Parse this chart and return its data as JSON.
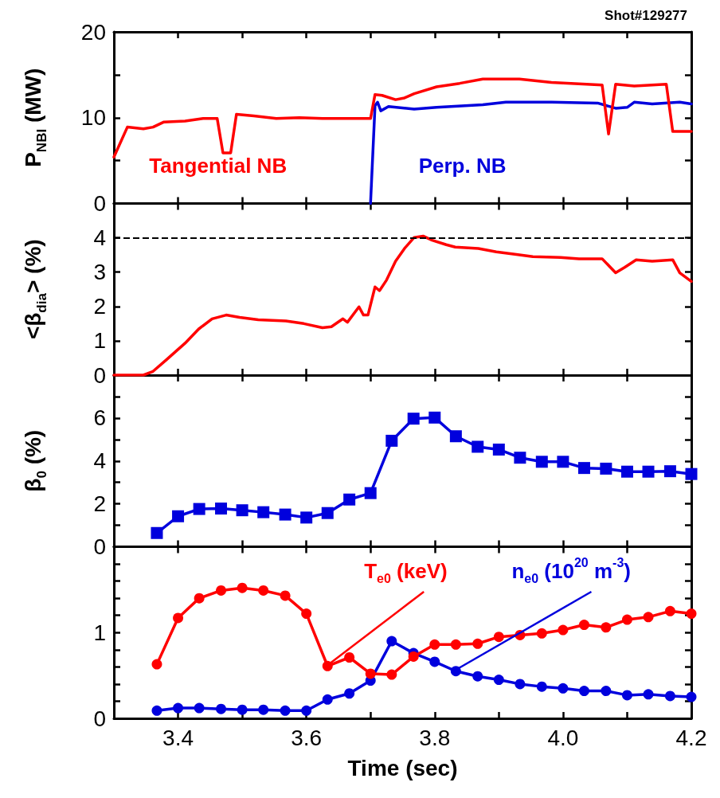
{
  "chart_data": [
    {
      "type": "line",
      "title": "Shot#129277",
      "ylabel": "P$_{NBI}$ (MW)",
      "xlim": [
        3.3,
        4.2
      ],
      "ylim": [
        0,
        20
      ],
      "tick_labels": "y",
      "legend": false,
      "xticks": [
        {
          "value": 3.4,
          "label": null
        },
        {
          "value": 3.5,
          "label": null
        },
        {
          "value": 3.6,
          "label": null
        },
        {
          "value": 3.7,
          "label": null
        },
        {
          "value": 3.8,
          "label": null
        },
        {
          "value": 3.9,
          "label": null
        },
        {
          "value": 4.0,
          "label": null
        },
        {
          "value": 4.1,
          "label": null
        },
        {
          "value": 4.2,
          "label": null
        }
      ],
      "yticks": [
        0,
        {
          "value": 5,
          "label": null
        },
        10,
        {
          "value": 15,
          "label": null
        },
        20
      ],
      "series": [
        {
          "name": "Tangential NB",
          "color": "#ff0000",
          "x": [
            3.3,
            3.321,
            3.346,
            3.361,
            3.378,
            3.411,
            3.439,
            3.461,
            3.47,
            3.482,
            3.491,
            3.518,
            3.553,
            3.589,
            3.625,
            3.696,
            3.7,
            3.707,
            3.718,
            3.739,
            3.753,
            3.768,
            3.803,
            3.839,
            3.875,
            3.932,
            3.982,
            4.061,
            4.071,
            4.082,
            4.111,
            4.161,
            4.171,
            4.2
          ],
          "values": [
            5.4,
            8.9,
            8.7,
            8.9,
            9.5,
            9.6,
            9.9,
            9.9,
            5.9,
            5.9,
            10.4,
            10.2,
            9.9,
            10.0,
            9.9,
            9.9,
            9.9,
            12.7,
            12.6,
            12.1,
            12.3,
            12.8,
            13.6,
            14.0,
            14.5,
            14.5,
            14.1,
            13.8,
            8.1,
            13.9,
            13.7,
            13.9,
            8.4,
            8.4
          ]
        },
        {
          "name": "Perp. NB",
          "color": "#0000dd",
          "x": [
            3.7,
            3.707,
            3.711,
            3.716,
            3.728,
            3.768,
            3.803,
            3.875,
            3.911,
            3.982,
            4.054,
            4.082,
            4.1,
            4.111,
            4.139,
            4.182,
            4.2
          ],
          "values": [
            0,
            11.4,
            11.8,
            10.8,
            11.3,
            11.0,
            11.2,
            11.5,
            11.8,
            11.8,
            11.7,
            11.1,
            11.2,
            11.8,
            11.6,
            11.8,
            11.6
          ]
        }
      ]
    },
    {
      "type": "line",
      "ylabel": "<β$_{dia}$> (%)",
      "xlim": [
        3.3,
        4.2
      ],
      "ylim": [
        0,
        5
      ],
      "tick_labels": "y",
      "xticks": [
        {
          "value": 3.4,
          "label": null
        },
        {
          "value": 3.5,
          "label": null
        },
        {
          "value": 3.6,
          "label": null
        },
        {
          "value": 3.7,
          "label": null
        },
        {
          "value": 3.8,
          "label": null
        },
        {
          "value": 3.9,
          "label": null
        },
        {
          "value": 4.0,
          "label": null
        },
        {
          "value": 4.1,
          "label": null
        },
        {
          "value": 4.2,
          "label": null
        }
      ],
      "yticks": [
        0,
        1,
        2,
        3,
        4
      ],
      "ref_lines": [
        {
          "axis": "y",
          "value": 4,
          "color": "#000000",
          "line_style": "dashed"
        }
      ],
      "series": [
        {
          "color": "#ff0000",
          "x": [
            3.3,
            3.346,
            3.361,
            3.382,
            3.411,
            3.432,
            3.453,
            3.475,
            3.496,
            3.525,
            3.568,
            3.596,
            3.625,
            3.639,
            3.657,
            3.664,
            3.682,
            3.689,
            3.696,
            3.707,
            3.714,
            3.725,
            3.739,
            3.753,
            3.768,
            3.782,
            3.796,
            3.818,
            3.832,
            3.868,
            3.896,
            3.925,
            3.953,
            3.996,
            4.025,
            4.061,
            4.082,
            4.096,
            4.114,
            4.139,
            4.171,
            4.182,
            4.2
          ],
          "values": [
            0,
            0,
            0.11,
            0.45,
            0.93,
            1.34,
            1.64,
            1.75,
            1.68,
            1.61,
            1.58,
            1.5,
            1.38,
            1.41,
            1.64,
            1.54,
            1.99,
            1.75,
            1.75,
            2.57,
            2.46,
            2.77,
            3.32,
            3.69,
            4.01,
            4.05,
            3.93,
            3.8,
            3.73,
            3.69,
            3.59,
            3.52,
            3.45,
            3.43,
            3.39,
            3.39,
            2.98,
            3.14,
            3.36,
            3.32,
            3.36,
            2.98,
            2.73
          ]
        }
      ]
    },
    {
      "type": "line",
      "ylabel": "β$_{0}$ (%)",
      "xlim": [
        3.3,
        4.2
      ],
      "ylim": [
        0,
        8
      ],
      "tick_labels": "y",
      "marker": "square",
      "xticks": [
        {
          "value": 3.4,
          "label": null
        },
        {
          "value": 3.5,
          "label": null
        },
        {
          "value": 3.6,
          "label": null
        },
        {
          "value": 3.7,
          "label": null
        },
        {
          "value": 3.8,
          "label": null
        },
        {
          "value": 3.9,
          "label": null
        },
        {
          "value": 4.0,
          "label": null
        },
        {
          "value": 4.1,
          "label": null
        },
        {
          "value": 4.2,
          "label": null
        }
      ],
      "yticks": [
        0,
        {
          "value": 1,
          "label": null
        },
        2,
        {
          "value": 3,
          "label": null
        },
        4,
        {
          "value": 5,
          "label": null
        },
        6,
        {
          "value": 7,
          "label": null
        }
      ],
      "x": [
        3.367,
        3.4,
        3.433,
        3.467,
        3.5,
        3.533,
        3.567,
        3.6,
        3.633,
        3.667,
        3.7,
        3.733,
        3.767,
        3.8,
        3.833,
        3.867,
        3.9,
        3.933,
        3.967,
        4.0,
        4.033,
        4.067,
        4.1,
        4.133,
        4.167,
        4.2
      ],
      "series": [
        {
          "color": "#0000dd",
          "values": [
            0.64,
            1.42,
            1.76,
            1.78,
            1.7,
            1.61,
            1.5,
            1.36,
            1.57,
            2.2,
            2.5,
            4.94,
            5.97,
            6.02,
            5.15,
            4.66,
            4.53,
            4.15,
            3.96,
            3.96,
            3.67,
            3.64,
            3.5,
            3.5,
            3.52,
            3.39
          ]
        }
      ]
    },
    {
      "type": "line",
      "xlabel": "Time (sec)",
      "xlim": [
        3.3,
        4.2
      ],
      "ylim": [
        0,
        2
      ],
      "marker": "circle",
      "legend": false,
      "xticks": [
        {
          "value": 3.4,
          "label": "3.4"
        },
        {
          "value": 3.5,
          "label": null
        },
        {
          "value": 3.6,
          "label": "3.6"
        },
        {
          "value": 3.7,
          "label": null
        },
        {
          "value": 3.8,
          "label": "3.8"
        },
        {
          "value": 3.9,
          "label": null
        },
        {
          "value": 4.0,
          "label": "4.0"
        },
        {
          "value": 4.1,
          "label": null
        },
        {
          "value": 4.2,
          "label": "4.2"
        }
      ],
      "yticks": [
        0,
        {
          "value": 0.2,
          "label": null
        },
        {
          "value": 0.4,
          "label": null
        },
        {
          "value": 0.6,
          "label": null
        },
        {
          "value": 0.8,
          "label": null
        },
        1,
        {
          "value": 1.2,
          "label": null
        },
        {
          "value": 1.4,
          "label": null
        },
        {
          "value": 1.6,
          "label": null
        },
        {
          "value": 1.8,
          "label": null
        }
      ],
      "x": [
        3.367,
        3.4,
        3.433,
        3.467,
        3.5,
        3.533,
        3.567,
        3.6,
        3.633,
        3.667,
        3.7,
        3.733,
        3.767,
        3.8,
        3.833,
        3.867,
        3.9,
        3.933,
        3.967,
        4.0,
        4.033,
        4.067,
        4.1,
        4.133,
        4.167,
        4.2
      ],
      "series": [
        {
          "name": "T$_{e0}$ (keV)",
          "color": "#ff0000",
          "values": [
            0.63,
            1.17,
            1.4,
            1.49,
            1.52,
            1.49,
            1.43,
            1.22,
            0.61,
            0.71,
            0.52,
            0.51,
            0.72,
            0.86,
            0.86,
            0.87,
            0.95,
            0.97,
            0.99,
            1.03,
            1.09,
            1.06,
            1.15,
            1.18,
            1.25,
            1.22
          ]
        },
        {
          "name": "n$_{e0}$ (10$^{20}$ m$^{-3}$)",
          "color": "#0000dd",
          "values": [
            0.09,
            0.12,
            0.12,
            0.11,
            0.1,
            0.1,
            0.09,
            0.09,
            0.22,
            0.29,
            0.44,
            0.9,
            0.76,
            0.66,
            0.55,
            0.49,
            0.45,
            0.4,
            0.37,
            0.35,
            0.32,
            0.32,
            0.27,
            0.28,
            0.26,
            0.25
          ]
        }
      ]
    }
  ]
}
